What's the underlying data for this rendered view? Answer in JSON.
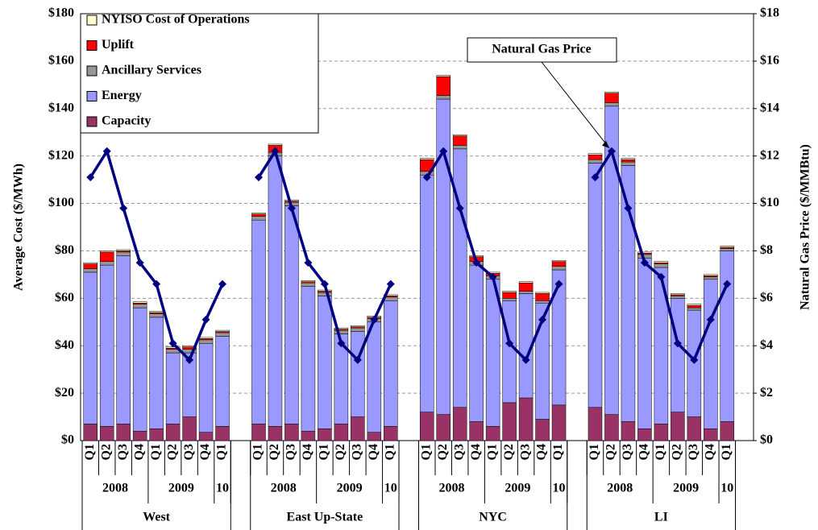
{
  "chart_data": {
    "type": "bar",
    "stacked": true,
    "y_label": "Average Cost ($/MWh)",
    "y2_label": "Natural Gas Price ($/MMBtu)",
    "categories": [
      "Q1",
      "Q2",
      "Q3",
      "Q4",
      "Q1",
      "Q2",
      "Q3",
      "Q4",
      "Q1",
      "Q1",
      "Q2",
      "Q3",
      "Q4",
      "Q1",
      "Q2",
      "Q3",
      "Q4",
      "Q1",
      "Q1",
      "Q2",
      "Q3",
      "Q4",
      "Q1",
      "Q2",
      "Q3",
      "Q4",
      "Q1",
      "Q1",
      "Q2",
      "Q3",
      "Q4",
      "Q1",
      "Q2",
      "Q3",
      "Q4",
      "Q1"
    ],
    "groups": [
      {
        "name": "West",
        "years": [
          "2008",
          "2009",
          "10"
        ]
      },
      {
        "name": "East Up-State",
        "years": [
          "2008",
          "2009",
          "10"
        ]
      },
      {
        "name": "NYC",
        "years": [
          "2008",
          "2009",
          "10"
        ]
      },
      {
        "name": "LI",
        "years": [
          "2008",
          "2009",
          "10"
        ]
      }
    ],
    "series": [
      {
        "name": "Capacity",
        "color": "#993366",
        "values": [
          7,
          6,
          7,
          4,
          5,
          7,
          10,
          3.5,
          6,
          7,
          6,
          7,
          4,
          5,
          7,
          10,
          3.5,
          6,
          12,
          11,
          14,
          8,
          6,
          16,
          18,
          9,
          15,
          14,
          11,
          8,
          5,
          7,
          12,
          10,
          5,
          8
        ]
      },
      {
        "name": "Energy",
        "color": "#9999ff",
        "values": [
          64,
          68,
          71,
          52,
          47,
          30,
          27,
          37.5,
          38,
          86,
          114,
          92,
          61,
          56,
          38,
          36,
          46.5,
          53,
          100,
          133,
          109,
          66,
          62,
          43,
          44,
          49,
          57,
          103,
          130,
          108,
          72,
          66,
          48,
          45,
          63,
          72
        ]
      },
      {
        "name": "Ancillary Services",
        "color": "#969696",
        "values": [
          1.5,
          1.5,
          1.5,
          1.5,
          1.5,
          1.5,
          1.5,
          1.5,
          1.5,
          1.5,
          1.5,
          1.5,
          1.5,
          1.5,
          1.5,
          1.5,
          1.5,
          1.5,
          1.5,
          1.5,
          1.5,
          1.5,
          1.5,
          1,
          1,
          1,
          1.5,
          1.5,
          1.5,
          1.5,
          1.5,
          1.5,
          1,
          1,
          1,
          1
        ]
      },
      {
        "name": "Uplift",
        "color": "#ff0000",
        "values": [
          2,
          4,
          0.5,
          0.5,
          0.5,
          0.5,
          1,
          0.5,
          0.5,
          1,
          3,
          0.5,
          0.5,
          0.5,
          0.5,
          0.5,
          0.5,
          0.5,
          5,
          8,
          4,
          2,
          1,
          2.5,
          3.5,
          3,
          2,
          2,
          4,
          1,
          0.5,
          0.5,
          0.5,
          1,
          0.5,
          0.5
        ]
      },
      {
        "name": "NYISO Cost of Operations",
        "color": "#ffffcc",
        "values": [
          0.5,
          0.5,
          0.5,
          0.5,
          0.5,
          0.5,
          0.5,
          0.5,
          0.5,
          0.5,
          0.5,
          0.5,
          0.5,
          0.5,
          0.5,
          0.5,
          0.5,
          0.5,
          0.5,
          0.5,
          0.5,
          0.5,
          0.5,
          0.5,
          0.5,
          0.5,
          0.5,
          0.5,
          0.5,
          0.5,
          0.5,
          0.5,
          0.5,
          0.5,
          0.5,
          0.5
        ]
      }
    ],
    "line_series": {
      "name": "Natural Gas Price",
      "color": "#000080",
      "axis": "y2",
      "values": [
        11.1,
        12.2,
        9.8,
        7.5,
        6.6,
        4.1,
        3.4,
        5.1,
        6.6,
        11.1,
        12.2,
        9.8,
        7.5,
        6.6,
        4.1,
        3.4,
        5.1,
        6.6,
        11.1,
        12.2,
        9.8,
        7.5,
        6.9,
        4.1,
        3.4,
        5.1,
        6.6,
        11.1,
        12.2,
        9.8,
        7.5,
        6.9,
        4.1,
        3.4,
        5.1,
        6.6
      ]
    },
    "ylim": [
      0,
      180
    ],
    "yticks": [
      {
        "value": 0,
        "label": "$0"
      },
      {
        "value": 20,
        "label": "$20"
      },
      {
        "value": 40,
        "label": "$40"
      },
      {
        "value": 60,
        "label": "$60"
      },
      {
        "value": 80,
        "label": "$80"
      },
      {
        "value": 100,
        "label": "$100"
      },
      {
        "value": 120,
        "label": "$120"
      },
      {
        "value": 140,
        "label": "$140"
      },
      {
        "value": 160,
        "label": "$160"
      },
      {
        "value": 180,
        "label": "$180"
      }
    ],
    "y2lim": [
      0,
      18
    ],
    "y2ticks": [
      {
        "value": 0,
        "label": "$0"
      },
      {
        "value": 2,
        "label": "$2"
      },
      {
        "value": 4,
        "label": "$4"
      },
      {
        "value": 6,
        "label": "$6"
      },
      {
        "value": 8,
        "label": "$8"
      },
      {
        "value": 10,
        "label": "$10"
      },
      {
        "value": 12,
        "label": "$12"
      },
      {
        "value": 14,
        "label": "$14"
      },
      {
        "value": 16,
        "label": "$16"
      },
      {
        "value": 18,
        "label": "$18"
      }
    ],
    "grid": true,
    "legend": "top-left"
  }
}
